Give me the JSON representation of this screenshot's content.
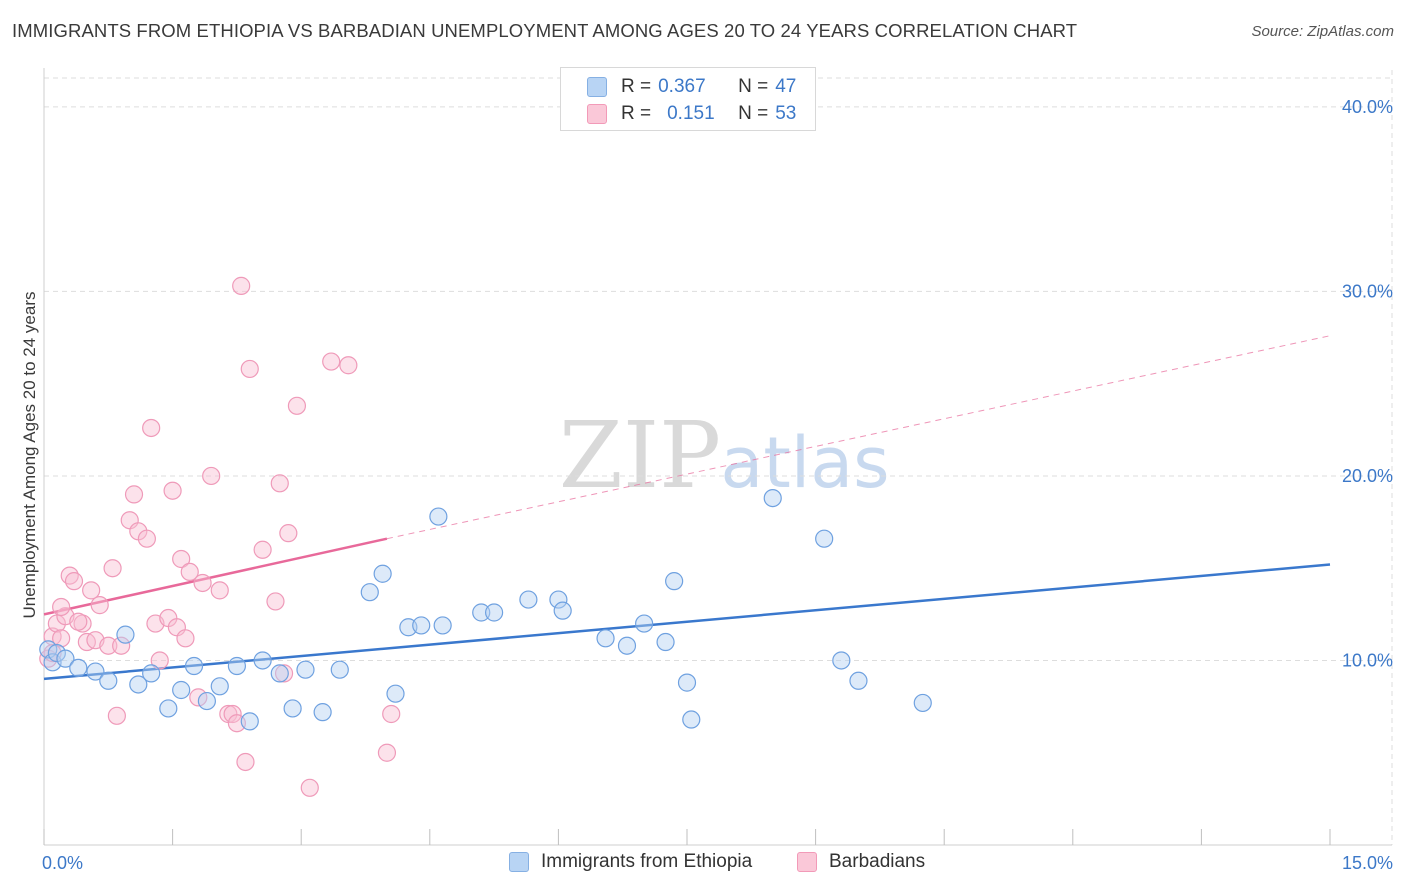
{
  "title": "IMMIGRANTS FROM ETHIOPIA VS BARBADIAN UNEMPLOYMENT AMONG AGES 20 TO 24 YEARS CORRELATION CHART",
  "source": "Source: ZipAtlas.com",
  "watermark": {
    "zip": "ZIP",
    "atlas": "atlas"
  },
  "legend": {
    "rows": [
      {
        "r_label": "R =",
        "r_value": "0.367",
        "n_label": "N =",
        "n_value": "47"
      },
      {
        "r_label": "R =",
        "r_value": "0.151",
        "n_label": "N =",
        "n_value": "53"
      }
    ]
  },
  "bottom_legend": {
    "series1": "Immigrants from Ethiopia",
    "series2": "Barbadians"
  },
  "colors": {
    "blue": "#3a78cd",
    "pink": "#e8699a",
    "blue_fill": "#b8d4f4",
    "pink_fill": "#fac8d8",
    "axis_text": "#3c78c8",
    "grid": "#dddddd"
  },
  "chart_data": {
    "type": "scatter",
    "title": "IMMIGRANTS FROM ETHIOPIA VS BARBADIAN UNEMPLOYMENT AMONG AGES 20 TO 24 YEARS CORRELATION CHART",
    "xlabel": "",
    "ylabel": "Unemployment Among Ages 20 to 24 years",
    "xlim": [
      0,
      15
    ],
    "ylim": [
      0,
      42
    ],
    "x_tick_labels": [
      "0.0%",
      "15.0%"
    ],
    "y_ticks": [
      10,
      20,
      30,
      40
    ],
    "y_tick_labels": [
      "10.0%",
      "20.0%",
      "30.0%",
      "40.0%"
    ],
    "series": [
      {
        "name": "Immigrants from Ethiopia",
        "color": "#3a78cd",
        "r": 0.367,
        "n": 47,
        "trend": {
          "x": [
            0,
            15
          ],
          "y": [
            9.0,
            15.2
          ]
        },
        "points": [
          [
            0.05,
            10.6
          ],
          [
            0.1,
            9.9
          ],
          [
            0.15,
            10.4
          ],
          [
            0.25,
            10.1
          ],
          [
            0.4,
            9.6
          ],
          [
            0.6,
            9.4
          ],
          [
            0.75,
            8.9
          ],
          [
            0.95,
            11.4
          ],
          [
            1.1,
            8.7
          ],
          [
            1.25,
            9.3
          ],
          [
            1.45,
            7.4
          ],
          [
            1.6,
            8.4
          ],
          [
            1.75,
            9.7
          ],
          [
            1.9,
            7.8
          ],
          [
            2.05,
            8.6
          ],
          [
            2.25,
            9.7
          ],
          [
            2.4,
            6.7
          ],
          [
            2.55,
            10.0
          ],
          [
            2.75,
            9.3
          ],
          [
            2.9,
            7.4
          ],
          [
            3.05,
            9.5
          ],
          [
            3.25,
            7.2
          ],
          [
            3.45,
            9.5
          ],
          [
            3.8,
            13.7
          ],
          [
            3.95,
            14.7
          ],
          [
            4.1,
            8.2
          ],
          [
            4.25,
            11.8
          ],
          [
            4.4,
            11.9
          ],
          [
            4.6,
            17.8
          ],
          [
            4.65,
            11.9
          ],
          [
            5.1,
            12.6
          ],
          [
            5.25,
            12.6
          ],
          [
            5.65,
            13.3
          ],
          [
            6.0,
            13.3
          ],
          [
            6.05,
            12.7
          ],
          [
            6.55,
            11.2
          ],
          [
            6.8,
            10.8
          ],
          [
            7.0,
            12.0
          ],
          [
            7.25,
            11.0
          ],
          [
            7.35,
            14.3
          ],
          [
            7.55,
            6.8
          ],
          [
            7.5,
            8.8
          ],
          [
            8.5,
            18.8
          ],
          [
            9.1,
            16.6
          ],
          [
            9.3,
            10.0
          ],
          [
            9.5,
            8.9
          ],
          [
            10.25,
            7.7
          ]
        ]
      },
      {
        "name": "Barbadians",
        "color": "#e8699a",
        "r": 0.151,
        "n": 53,
        "trend": {
          "x": [
            0,
            4.0
          ],
          "y": [
            12.5,
            16.6
          ]
        },
        "trend_dashed": {
          "x": [
            4.0,
            15
          ],
          "y": [
            16.6,
            27.6
          ]
        },
        "points": [
          [
            0.05,
            10.1
          ],
          [
            0.1,
            11.3
          ],
          [
            0.15,
            12.0
          ],
          [
            0.2,
            11.2
          ],
          [
            0.25,
            12.4
          ],
          [
            0.3,
            14.6
          ],
          [
            0.35,
            14.3
          ],
          [
            0.45,
            12.0
          ],
          [
            0.5,
            11.0
          ],
          [
            0.55,
            13.8
          ],
          [
            0.6,
            11.1
          ],
          [
            0.65,
            13.0
          ],
          [
            0.75,
            10.8
          ],
          [
            0.8,
            15.0
          ],
          [
            0.85,
            7.0
          ],
          [
            0.9,
            10.8
          ],
          [
            1.0,
            17.6
          ],
          [
            1.05,
            19.0
          ],
          [
            1.1,
            17.0
          ],
          [
            1.2,
            16.6
          ],
          [
            1.25,
            22.6
          ],
          [
            1.3,
            12.0
          ],
          [
            1.35,
            10.0
          ],
          [
            1.45,
            12.3
          ],
          [
            1.5,
            19.2
          ],
          [
            1.55,
            11.8
          ],
          [
            1.6,
            15.5
          ],
          [
            1.65,
            11.2
          ],
          [
            1.7,
            14.8
          ],
          [
            1.8,
            8.0
          ],
          [
            1.85,
            14.2
          ],
          [
            1.95,
            20.0
          ],
          [
            2.05,
            13.8
          ],
          [
            2.15,
            7.1
          ],
          [
            2.2,
            7.1
          ],
          [
            2.25,
            6.6
          ],
          [
            2.3,
            30.3
          ],
          [
            2.35,
            4.5
          ],
          [
            2.4,
            25.8
          ],
          [
            2.55,
            16.0
          ],
          [
            2.7,
            13.2
          ],
          [
            2.75,
            19.6
          ],
          [
            2.8,
            9.3
          ],
          [
            2.85,
            16.9
          ],
          [
            2.95,
            23.8
          ],
          [
            3.1,
            3.1
          ],
          [
            3.35,
            26.2
          ],
          [
            3.55,
            26.0
          ],
          [
            4.0,
            5.0
          ],
          [
            4.05,
            7.1
          ],
          [
            0.1,
            10.4
          ],
          [
            0.2,
            12.9
          ],
          [
            0.4,
            12.1
          ]
        ]
      }
    ]
  }
}
